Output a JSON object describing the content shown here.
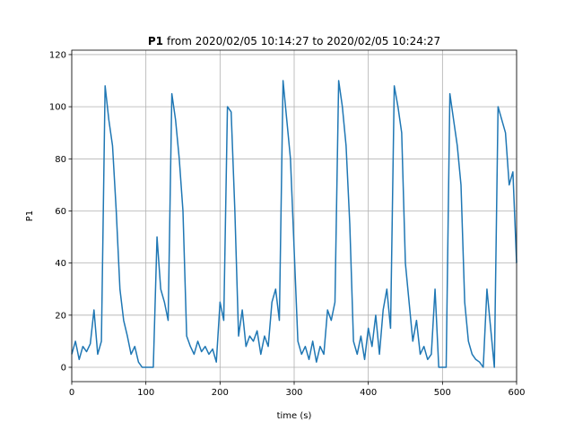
{
  "chart_data": {
    "type": "line",
    "title_parts": [
      "P1",
      "from 2020/02/05 10:14:27 to 2020/02/05 10:24:27"
    ],
    "x_label": "time (s)",
    "y_label": "P1",
    "x": [
      0,
      5,
      10,
      15,
      20,
      25,
      30,
      35,
      40,
      45,
      50,
      55,
      60,
      65,
      70,
      75,
      80,
      85,
      90,
      95,
      100,
      105,
      110,
      115,
      120,
      125,
      130,
      135,
      140,
      145,
      150,
      155,
      160,
      165,
      170,
      175,
      180,
      185,
      190,
      195,
      200,
      205,
      210,
      215,
      220,
      225,
      230,
      235,
      240,
      245,
      250,
      255,
      260,
      265,
      270,
      275,
      280,
      285,
      290,
      295,
      300,
      305,
      310,
      315,
      320,
      325,
      330,
      335,
      340,
      345,
      350,
      355,
      360,
      365,
      370,
      375,
      380,
      385,
      390,
      395,
      400,
      405,
      410,
      415,
      420,
      425,
      430,
      435,
      440,
      445,
      450,
      455,
      460,
      465,
      470,
      475,
      480,
      485,
      490,
      495,
      500,
      505,
      510,
      515,
      520,
      525,
      530,
      535,
      540,
      545,
      550,
      555,
      560,
      565,
      570,
      575,
      580,
      585,
      590,
      595,
      600
    ],
    "series": [
      {
        "name": "P1",
        "color": "#1f77b4",
        "values": [
          5,
          10,
          3,
          8,
          6,
          9,
          22,
          5,
          10,
          108,
          95,
          85,
          60,
          30,
          18,
          12,
          5,
          8,
          2,
          0,
          0,
          0,
          0,
          50,
          30,
          25,
          18,
          105,
          95,
          80,
          60,
          12,
          8,
          5,
          10,
          6,
          8,
          5,
          7,
          2,
          25,
          18,
          100,
          98,
          60,
          12,
          22,
          8,
          12,
          10,
          14,
          5,
          12,
          8,
          25,
          30,
          18,
          110,
          95,
          80,
          45,
          10,
          5,
          8,
          3,
          10,
          2,
          8,
          5,
          22,
          18,
          25,
          110,
          100,
          85,
          55,
          10,
          5,
          12,
          3,
          15,
          8,
          20,
          5,
          22,
          30,
          15,
          108,
          100,
          90,
          40,
          25,
          10,
          18,
          5,
          8,
          3,
          5,
          30,
          0,
          0,
          0,
          105,
          95,
          85,
          70,
          25,
          10,
          5,
          3,
          2,
          0,
          30,
          15,
          0,
          100,
          95,
          90,
          70,
          75,
          40
        ]
      }
    ],
    "xlim": [
      0,
      600
    ],
    "ylim": [
      -5.5,
      121.7
    ],
    "xticks": [
      0,
      100,
      200,
      300,
      400,
      500,
      600
    ],
    "yticks": [
      0,
      20,
      40,
      60,
      80,
      100,
      120
    ],
    "grid": true
  }
}
